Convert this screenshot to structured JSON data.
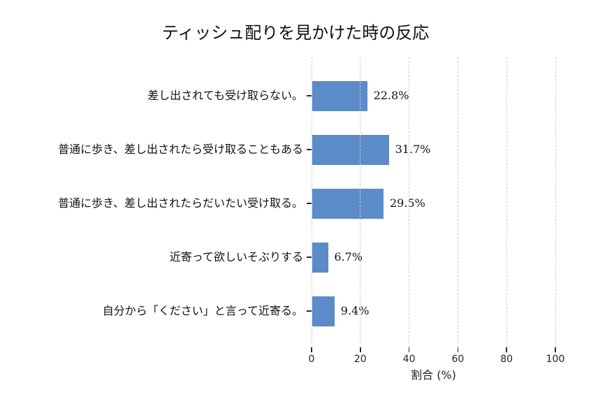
{
  "title": "ティッシュ配りを見かけた時の反応",
  "x_axis_label": "割合 (%)",
  "colors": {
    "bar": "#5c8bc9",
    "gridline": "#cccccc",
    "tick": "#2b2b2b",
    "text": "#111111",
    "background": "#ffffff"
  },
  "chart_data": {
    "type": "bar",
    "orientation": "horizontal",
    "title": "ティッシュ配りを見かけた時の反応",
    "xlabel": "割合 (%)",
    "ylabel": "",
    "categories": [
      "差し出されても受け取らない。",
      "普通に歩き、差し出されたら受け取ることもある",
      "普通に歩き、差し出されたらだいたい受け取る。",
      "近寄って欲しいそぶりする",
      "自分から「ください」と言って近寄る。"
    ],
    "values": [
      22.8,
      31.7,
      29.5,
      6.7,
      9.4
    ],
    "value_labels": [
      "22.8%",
      "31.7%",
      "29.5%",
      "6.7%",
      "9.4%"
    ],
    "xlim": [
      0,
      100
    ],
    "xticks": [
      0,
      20,
      40,
      60,
      80,
      100
    ],
    "grid": "vertical-dashed",
    "legend": "none"
  }
}
